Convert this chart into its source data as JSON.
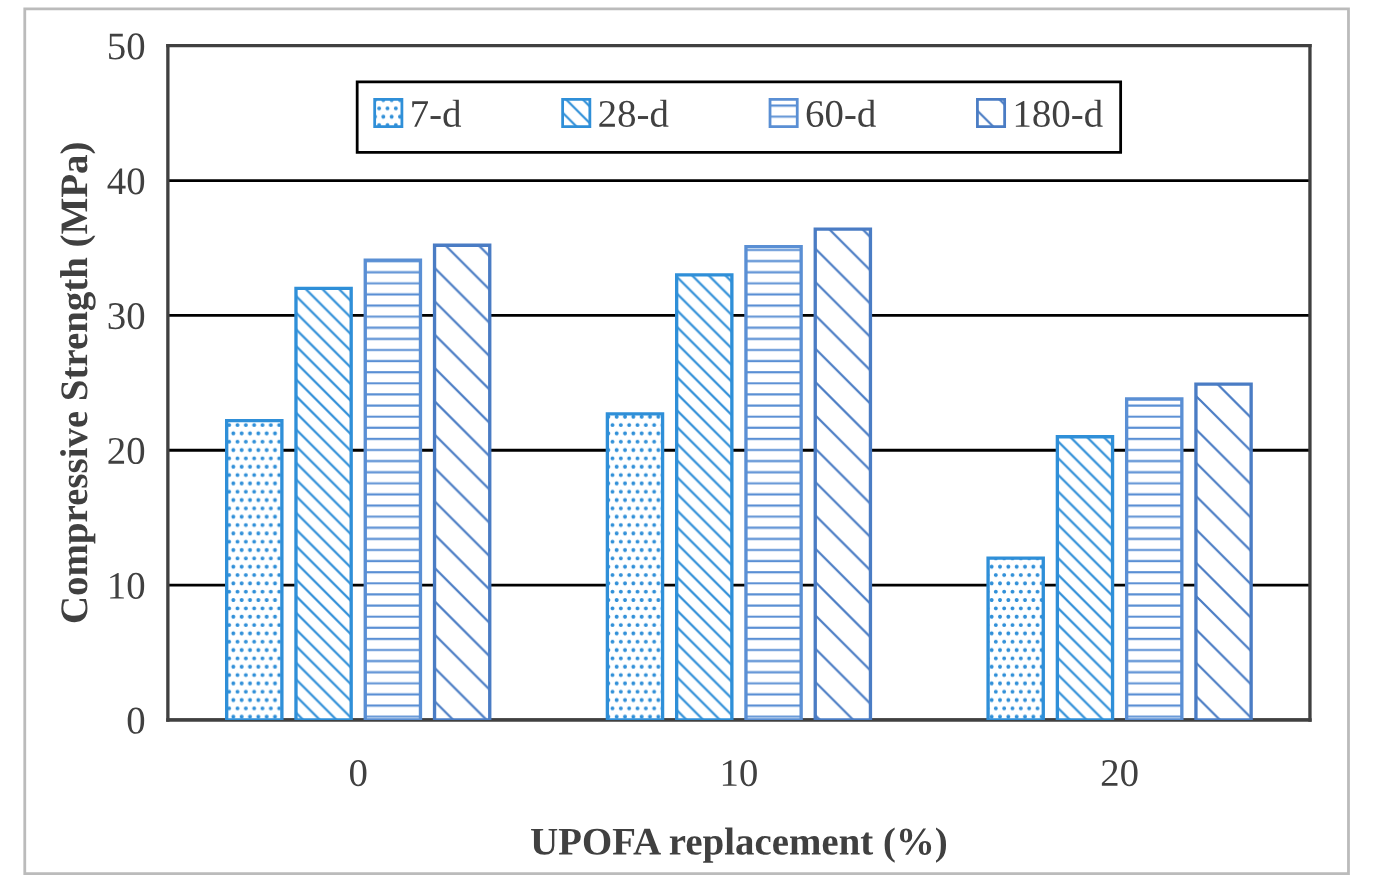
{
  "chart_data": {
    "type": "bar",
    "xlabel": "UPOFA replacement (%)",
    "ylabel": "Compressive Strength (MPa)",
    "categories": [
      "0",
      "10",
      "20"
    ],
    "series": [
      {
        "name": "7-d",
        "color": "#2f8fd8",
        "values": [
          22.2,
          22.7,
          12.0
        ]
      },
      {
        "name": "28-d",
        "color": "#2f8fd8",
        "values": [
          32.0,
          33.0,
          21.0
        ]
      },
      {
        "name": "60-d",
        "color": "#5a8fd4",
        "values": [
          34.1,
          35.1,
          23.8
        ]
      },
      {
        "name": "180-d",
        "color": "#4a7cc4",
        "values": [
          35.2,
          36.4,
          24.9
        ]
      }
    ],
    "ylim": [
      0,
      50
    ],
    "yticks": [
      0,
      10,
      20,
      30,
      40,
      50
    ],
    "grid": "y",
    "legend": "top"
  }
}
